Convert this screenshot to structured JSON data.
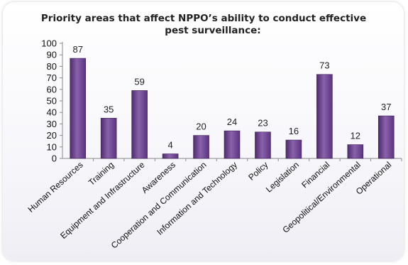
{
  "chart_data": {
    "type": "bar",
    "title_line1": "Priority areas that affect NPPO’s ability to conduct effective",
    "title_line2": "pest surveillance:",
    "categories": [
      "Human Resources",
      "Training",
      "Equipment and Infrastructure",
      "Awareness",
      "Cooperation and Communication",
      "Information and Technology",
      "Policy",
      "Legislation",
      "Financial",
      "Geopolitical/Environmental",
      "Operational"
    ],
    "values": [
      87,
      35,
      59,
      4,
      20,
      24,
      23,
      16,
      73,
      12,
      37
    ],
    "ylim": [
      0,
      100
    ],
    "yticks": [
      "0",
      "10",
      "20",
      "30",
      "40",
      "50",
      "60",
      "70",
      "80",
      "90",
      "100"
    ],
    "data_labels": [
      "87",
      "35",
      "59",
      "4",
      "20",
      "24",
      "23",
      "16",
      "73",
      "12",
      "37"
    ],
    "grid": false,
    "legend": "none",
    "bar_color": "#6b3f8e",
    "bar_highlight": "#9a76b8"
  }
}
